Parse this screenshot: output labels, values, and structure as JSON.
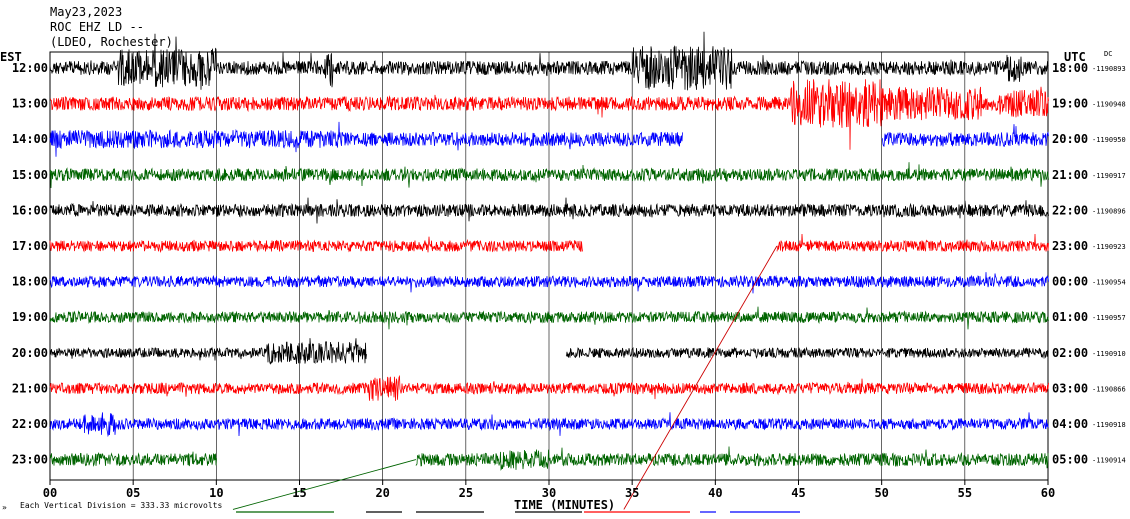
{
  "header": {
    "date": "May23,2023",
    "station": "ROC EHZ LD --",
    "network": "(LDEO, Rochester)",
    "left_zone": "EST",
    "right_zone": "UTC",
    "dc_label": "DC"
  },
  "footer": {
    "scale_note": "Each Vertical Division =  333.33 microvolts",
    "marker": "»"
  },
  "colors": {
    "cycle": [
      "#000000",
      "#ff0000",
      "#0000ff",
      "#006400"
    ],
    "grid": "#000000",
    "annotation_red": "#cc0000",
    "annotation_green": "#006400"
  },
  "chart_data": {
    "type": "line",
    "title": "ROC EHZ LD --",
    "xlabel": "TIME (MINUTES)",
    "ylabel": "",
    "xlim": [
      0,
      60
    ],
    "x_ticks": [
      "00",
      "05",
      "10",
      "15",
      "20",
      "25",
      "30",
      "35",
      "40",
      "45",
      "50",
      "55",
      "60"
    ],
    "series": [
      {
        "est": "12:00",
        "utc": "18:00",
        "count": "-1190893",
        "gaps": [],
        "amp": 1.0
      },
      {
        "est": "13:00",
        "utc": "19:00",
        "count": "-1190948",
        "gaps": [],
        "amp": 1.0
      },
      {
        "est": "14:00",
        "utc": "20:00",
        "count": "-1190950",
        "gaps": [
          [
            38,
            50
          ]
        ],
        "amp": 1.0
      },
      {
        "est": "15:00",
        "utc": "21:00",
        "count": "-1190917",
        "gaps": [],
        "amp": 0.9
      },
      {
        "est": "16:00",
        "utc": "22:00",
        "count": "-1190896",
        "gaps": [],
        "amp": 0.9
      },
      {
        "est": "17:00",
        "utc": "23:00",
        "count": "-1190923",
        "gaps": [
          [
            32,
            43.7
          ]
        ],
        "amp": 0.8
      },
      {
        "est": "18:00",
        "utc": "00:00",
        "count": "-1190954",
        "gaps": [],
        "amp": 0.8
      },
      {
        "est": "19:00",
        "utc": "01:00",
        "count": "-1190957",
        "gaps": [],
        "amp": 0.8
      },
      {
        "est": "20:00",
        "utc": "02:00",
        "count": "-1190910",
        "gaps": [
          [
            19,
            31
          ]
        ],
        "amp": 0.7
      },
      {
        "est": "21:00",
        "utc": "03:00",
        "count": "-1190866",
        "gaps": [],
        "amp": 0.8
      },
      {
        "est": "22:00",
        "utc": "04:00",
        "count": "-1190918",
        "gaps": [],
        "amp": 0.8
      },
      {
        "est": "23:00",
        "utc": "05:00",
        "count": "-1190914",
        "gaps": [
          [
            10,
            22
          ]
        ],
        "amp": 0.9
      }
    ],
    "bursts": [
      {
        "trace": 0,
        "x": [
          4,
          10
        ],
        "amp": 2.8
      },
      {
        "trace": 0,
        "x": [
          35,
          41
        ],
        "amp": 3.2
      },
      {
        "trace": 0,
        "x": [
          16.5,
          17
        ],
        "amp": 3.0
      },
      {
        "trace": 0,
        "x": [
          57.5,
          58.5
        ],
        "amp": 2.0
      },
      {
        "trace": 1,
        "x": [
          44.5,
          50
        ],
        "amp": 3.5
      },
      {
        "trace": 1,
        "x": [
          50,
          56
        ],
        "amp": 2.4
      },
      {
        "trace": 1,
        "x": [
          57,
          60
        ],
        "amp": 2.0
      },
      {
        "trace": 2,
        "x": [
          0,
          18
        ],
        "amp": 1.3
      },
      {
        "trace": 8,
        "x": [
          13,
          19
        ],
        "amp": 1.6
      },
      {
        "trace": 9,
        "x": [
          19,
          21
        ],
        "amp": 1.8
      },
      {
        "trace": 10,
        "x": [
          2,
          4
        ],
        "amp": 1.7
      },
      {
        "trace": 11,
        "x": [
          27,
          30
        ],
        "amp": 1.5
      }
    ],
    "annotation_lines": [
      {
        "color": "red",
        "from": [
          34.5,
          12.4
        ],
        "to": [
          43.7,
          5.0
        ]
      },
      {
        "color": "green",
        "from": [
          11,
          12.4
        ],
        "to": [
          22,
          11.0
        ]
      }
    ]
  }
}
